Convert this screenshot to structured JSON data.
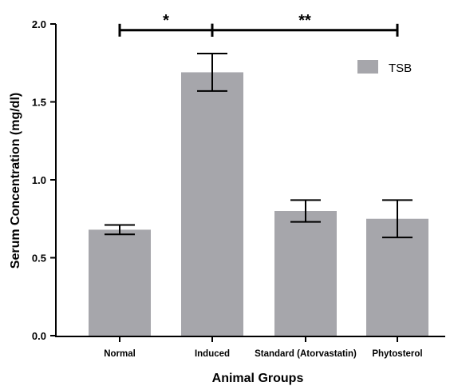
{
  "chart_data": {
    "type": "bar",
    "title": "",
    "xlabel": "Animal Groups",
    "ylabel": "Serum Concentration (mg/dl)",
    "ylim": [
      0,
      2.0
    ],
    "yticks": [
      "0.0",
      "0.5",
      "1.0",
      "1.5",
      "2.0"
    ],
    "categories": [
      "Normal",
      "Induced",
      "Standard (Atorvastatin)",
      "Phytosterol"
    ],
    "series": [
      {
        "name": "TSB",
        "values": [
          0.68,
          1.69,
          0.8,
          0.75
        ],
        "error": [
          0.03,
          0.12,
          0.07,
          0.12
        ],
        "color": "#a6a6ab"
      }
    ],
    "legend": {
      "position": "top-right"
    },
    "grid": false,
    "significance": [
      {
        "from": 0,
        "to": 1,
        "y": 1.96,
        "label": "*"
      },
      {
        "from": 1,
        "to": 3,
        "y": 1.96,
        "label": "**"
      }
    ]
  }
}
